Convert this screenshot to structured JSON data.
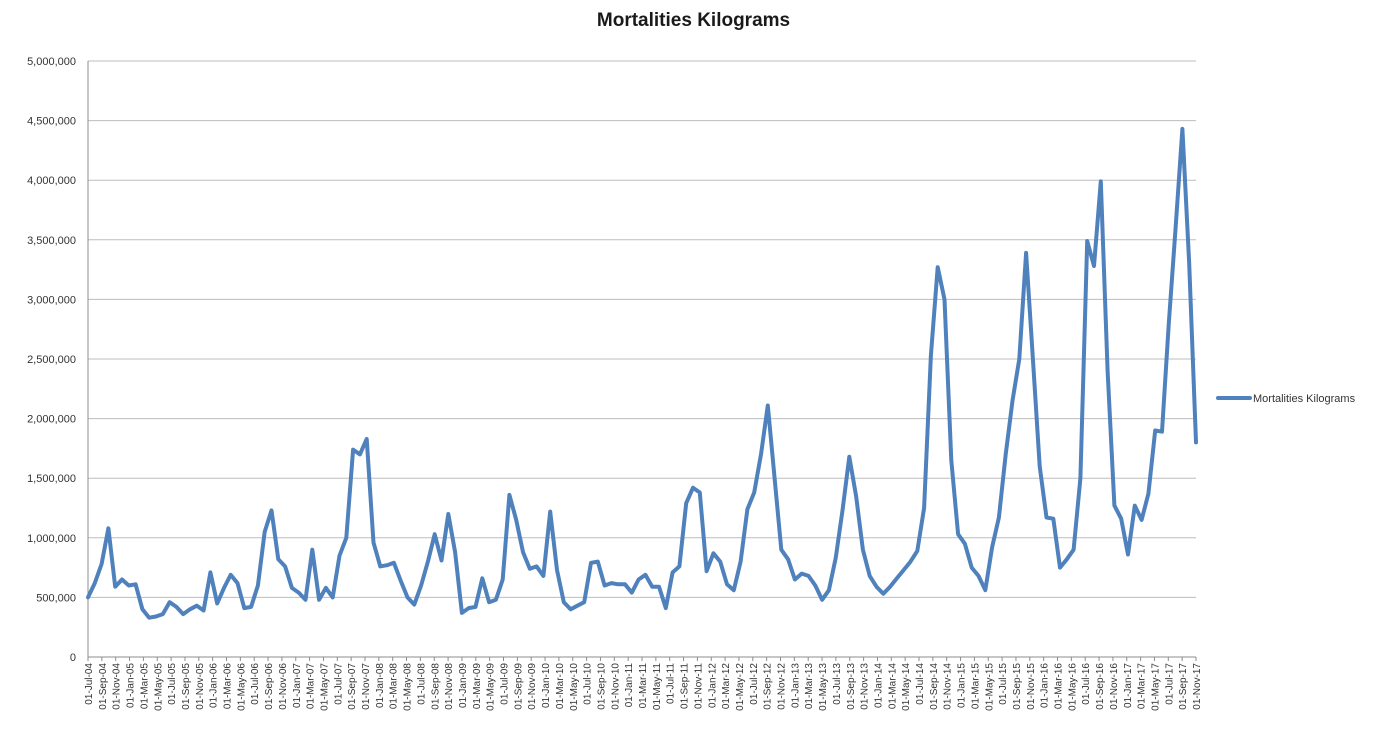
{
  "chart_data": {
    "type": "line",
    "title": "Mortalities Kilograms",
    "xlabel": "",
    "ylabel": "",
    "ylim": [
      0,
      5000000
    ],
    "ytick_labels": [
      "0",
      "500,000",
      "1,000,000",
      "1,500,000",
      "2,000,000",
      "2,500,000",
      "3,000,000",
      "3,500,000",
      "4,000,000",
      "4,500,000",
      "5,000,000"
    ],
    "xtick_labels": [
      "01-Jul-04",
      "01-Sep-04",
      "01-Nov-04",
      "01-Jan-05",
      "01-Mar-05",
      "01-May-05",
      "01-Jul-05",
      "01-Sep-05",
      "01-Nov-05",
      "01-Jan-06",
      "01-Mar-06",
      "01-May-06",
      "01-Jul-06",
      "01-Sep-06",
      "01-Nov-06",
      "01-Jan-07",
      "01-Mar-07",
      "01-May-07",
      "01-Jul-07",
      "01-Sep-07",
      "01-Nov-07",
      "01-Jan-08",
      "01-Mar-08",
      "01-May-08",
      "01-Jul-08",
      "01-Sep-08",
      "01-Nov-08",
      "01-Jan-09",
      "01-Mar-09",
      "01-May-09",
      "01-Jul-09",
      "01-Sep-09",
      "01-Nov-09",
      "01-Jan-10",
      "01-Mar-10",
      "01-May-10",
      "01-Jul-10",
      "01-Sep-10",
      "01-Nov-10",
      "01-Jan-11",
      "01-Mar-11",
      "01-May-11",
      "01-Jul-11",
      "01-Sep-11",
      "01-Nov-11",
      "01-Jan-12",
      "01-Mar-12",
      "01-May-12",
      "01-Jul-12",
      "01-Sep-12",
      "01-Nov-12",
      "01-Jan-13",
      "01-Mar-13",
      "01-May-13",
      "01-Jul-13",
      "01-Sep-13",
      "01-Nov-13",
      "01-Jan-14",
      "01-Mar-14",
      "01-May-14",
      "01-Jul-14",
      "01-Sep-14",
      "01-Nov-14",
      "01-Jan-15",
      "01-Mar-15",
      "01-May-15",
      "01-Jul-15",
      "01-Sep-15",
      "01-Nov-15",
      "01-Jan-16",
      "01-Mar-16",
      "01-May-16",
      "01-Jul-16",
      "01-Sep-16",
      "01-Nov-16",
      "01-Jan-17",
      "01-Mar-17",
      "01-May-17",
      "01-Jul-17",
      "01-Sep-17",
      "01-Nov-17"
    ],
    "grid": true,
    "legend_position": "right",
    "color": "#4f81bd",
    "series": [
      {
        "name": "Mortalities Kilograms",
        "values": [
          500000,
          620000,
          780000,
          1080000,
          590000,
          650000,
          600000,
          610000,
          400000,
          330000,
          340000,
          360000,
          460000,
          420000,
          360000,
          400000,
          430000,
          390000,
          710000,
          450000,
          580000,
          690000,
          620000,
          410000,
          420000,
          600000,
          1050000,
          1230000,
          820000,
          760000,
          580000,
          540000,
          480000,
          900000,
          480000,
          580000,
          500000,
          850000,
          1000000,
          1740000,
          1700000,
          1830000,
          960000,
          760000,
          770000,
          790000,
          640000,
          500000,
          440000,
          600000,
          800000,
          1030000,
          810000,
          1200000,
          880000,
          370000,
          410000,
          420000,
          660000,
          460000,
          480000,
          650000,
          1360000,
          1150000,
          880000,
          740000,
          760000,
          680000,
          1220000,
          730000,
          460000,
          400000,
          430000,
          460000,
          790000,
          800000,
          600000,
          620000,
          610000,
          610000,
          540000,
          650000,
          690000,
          590000,
          590000,
          410000,
          710000,
          760000,
          1290000,
          1420000,
          1380000,
          720000,
          870000,
          800000,
          610000,
          560000,
          800000,
          1240000,
          1380000,
          1700000,
          2110000,
          1500000,
          900000,
          820000,
          650000,
          700000,
          680000,
          600000,
          480000,
          560000,
          830000,
          1230000,
          1680000,
          1350000,
          900000,
          680000,
          590000,
          530000,
          590000,
          660000,
          730000,
          800000,
          890000,
          1250000,
          2530000,
          3270000,
          3000000,
          1650000,
          1030000,
          950000,
          750000,
          680000,
          560000,
          920000,
          1170000,
          1700000,
          2150000,
          2500000,
          3390000,
          2500000,
          1600000,
          1170000,
          1160000,
          750000,
          820000,
          900000,
          1500000,
          3490000,
          3280000,
          3990000,
          2400000,
          1270000,
          1160000,
          860000,
          1270000,
          1150000,
          1370000,
          1900000,
          1890000,
          2800000,
          3600000,
          4430000,
          3300000,
          1800000
        ]
      }
    ]
  }
}
